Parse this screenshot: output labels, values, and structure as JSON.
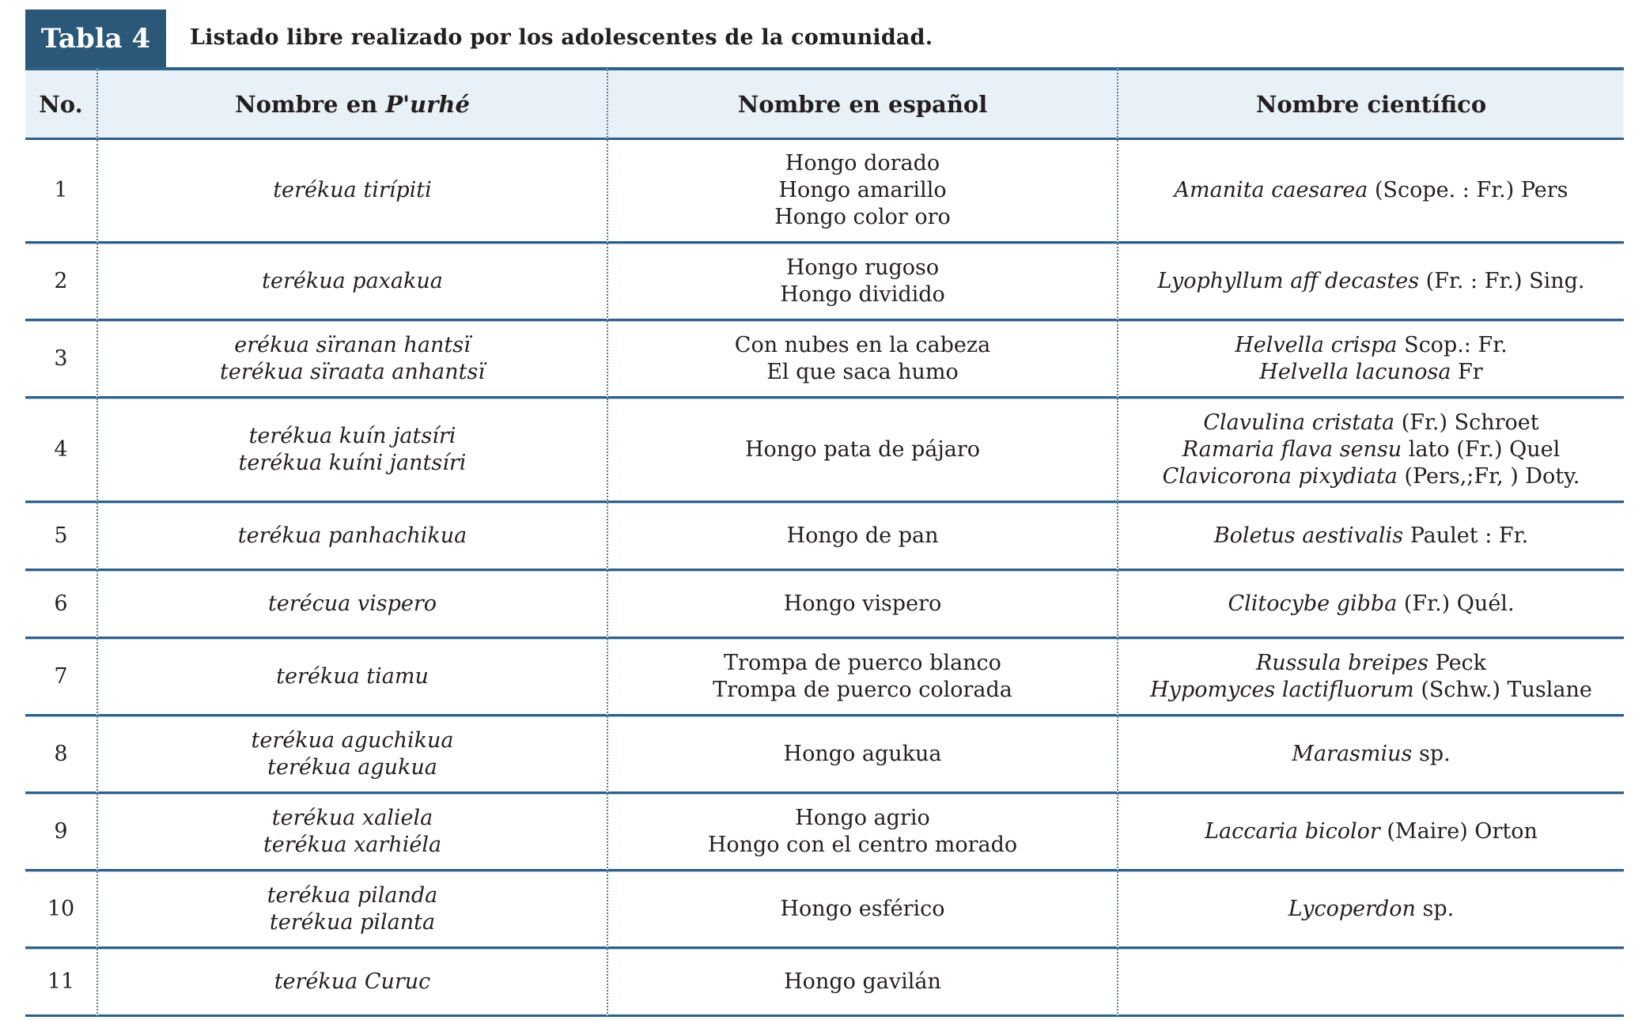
{
  "header": {
    "tab_label": "Tabla 4",
    "caption": "Listado libre realizado por los adolescentes de la comunidad."
  },
  "colors": {
    "accent_dark_blue": "#2b5878",
    "header_row_bg": "#e9f1f8",
    "rule_dark": "#2e6089",
    "rule_light": "#b9cdde",
    "dotted_divider": "#4d7ca6",
    "text": "#231f20"
  },
  "table": {
    "headers": {
      "no": "No.",
      "purhe_prefix": "Nombre en ",
      "purhe_italic": "P'urhé",
      "spanish": "Nombre en español",
      "scientific": "Nombre científico"
    },
    "rows": [
      {
        "no": "1",
        "purhe": [
          "terékua tirípiti"
        ],
        "spanish": [
          "Hongo dorado",
          "Hongo amarillo",
          "Hongo color oro"
        ],
        "scientific": [
          {
            "italic": "Amanita caesarea",
            "regular": " (Scope. : Fr.) Pers"
          }
        ]
      },
      {
        "no": "2",
        "purhe": [
          "terékua paxakua"
        ],
        "spanish": [
          "Hongo rugoso",
          "Hongo dividido"
        ],
        "scientific": [
          {
            "italic": "Lyophyllum aff decastes",
            "regular": " (Fr. : Fr.) Sing."
          }
        ]
      },
      {
        "no": "3",
        "purhe": [
          "erékua sïranan hantsï",
          "terékua sïraata anhantsï"
        ],
        "spanish": [
          "Con nubes en la cabeza",
          "El que saca humo"
        ],
        "scientific": [
          {
            "italic": "Helvella crispa",
            "regular": " Scop.: Fr."
          },
          {
            "italic": "Helvella lacunosa",
            "regular": " Fr"
          }
        ]
      },
      {
        "no": "4",
        "purhe": [
          "terékua kuín jatsíri",
          "terékua kuíni jantsíri"
        ],
        "spanish": [
          "Hongo pata de pájaro"
        ],
        "scientific": [
          {
            "italic": "Clavulina cristata",
            "regular": " (Fr.) Schroet"
          },
          {
            "italic": "Ramaria flava sensu",
            "regular": " lato (Fr.) Quel"
          },
          {
            "italic": "Clavicorona pixydiata",
            "regular": " (Pers,;Fr, ) Doty."
          }
        ]
      },
      {
        "no": "5",
        "purhe": [
          "terékua panhachikua"
        ],
        "spanish": [
          "Hongo de pan"
        ],
        "scientific": [
          {
            "italic": "Boletus aestivalis",
            "regular": " Paulet : Fr."
          }
        ]
      },
      {
        "no": "6",
        "purhe": [
          "terécua vispero"
        ],
        "spanish": [
          "Hongo vispero"
        ],
        "scientific": [
          {
            "italic": "Clitocybe gibba",
            "regular": " (Fr.) Quél."
          }
        ]
      },
      {
        "no": "7",
        "purhe": [
          "terékua tiamu"
        ],
        "spanish": [
          "Trompa de puerco blanco",
          "Trompa de puerco colorada"
        ],
        "scientific": [
          {
            "italic": "Russula breipes",
            "regular": " Peck"
          },
          {
            "italic": "Hypomyces lactifluorum",
            "regular": " (Schw.) Tuslane"
          }
        ]
      },
      {
        "no": "8",
        "purhe": [
          "terékua aguchikua",
          "terékua agukua"
        ],
        "spanish": [
          "Hongo agukua"
        ],
        "scientific": [
          {
            "italic": "Marasmius",
            "regular": " sp."
          }
        ]
      },
      {
        "no": "9",
        "purhe": [
          "terékua xaliela",
          "terékua xarhiéla"
        ],
        "spanish": [
          "Hongo agrio",
          "Hongo con el centro morado"
        ],
        "scientific": [
          {
            "italic": "Laccaria bicolor",
            "regular": " (Maire) Orton"
          }
        ]
      },
      {
        "no": "10",
        "purhe": [
          "terékua pilanda",
          "terékua pilanta"
        ],
        "spanish": [
          "Hongo esférico"
        ],
        "scientific": [
          {
            "italic": "Lycoperdon",
            "regular": " sp."
          }
        ]
      },
      {
        "no": "11",
        "purhe": [
          "terékua Curuc"
        ],
        "spanish": [
          "Hongo gavilán"
        ],
        "scientific": []
      }
    ]
  }
}
